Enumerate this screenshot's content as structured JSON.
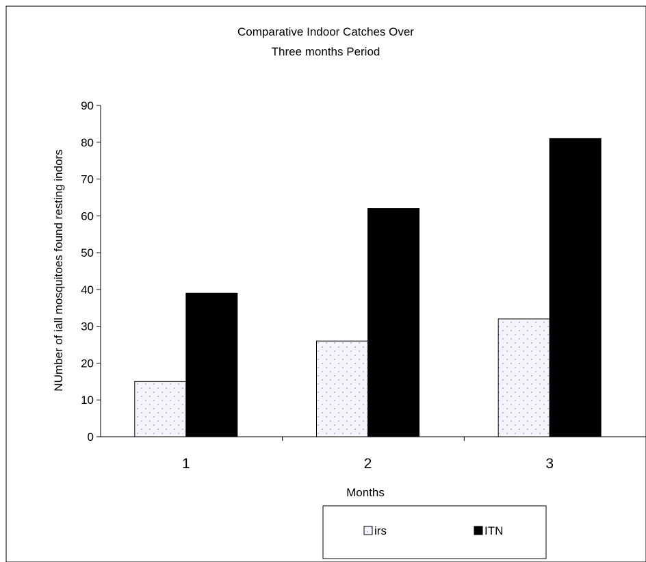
{
  "chart_data": {
    "type": "bar",
    "title_lines": [
      "Comparative Indoor Catches Over",
      "Three months Period"
    ],
    "xlabel": "Months",
    "ylabel": "NUmber of  iall mosquitoes  found resting indors",
    "categories": [
      "1",
      "2",
      "3"
    ],
    "ylim": [
      0,
      90
    ],
    "yticks": [
      0,
      10,
      20,
      30,
      40,
      50,
      60,
      70,
      80,
      90
    ],
    "grid": false,
    "legend_position": "bottom",
    "series": [
      {
        "name": "irs",
        "values": [
          15,
          26,
          32
        ],
        "color": "#f4f4fb",
        "pattern": "dotted"
      },
      {
        "name": "ITN",
        "values": [
          39,
          62,
          81
        ],
        "color": "#000000",
        "pattern": "solid"
      }
    ]
  }
}
